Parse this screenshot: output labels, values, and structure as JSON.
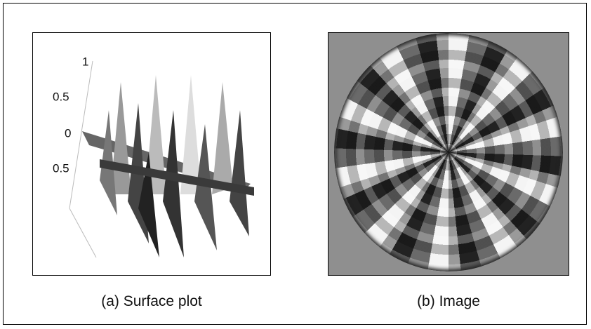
{
  "figure": {
    "panels": [
      {
        "caption": "(a) Surface plot",
        "axis_labels": [
          "1",
          "0.5",
          "0",
          "0.5"
        ]
      },
      {
        "caption": "(b) Image"
      }
    ]
  }
}
